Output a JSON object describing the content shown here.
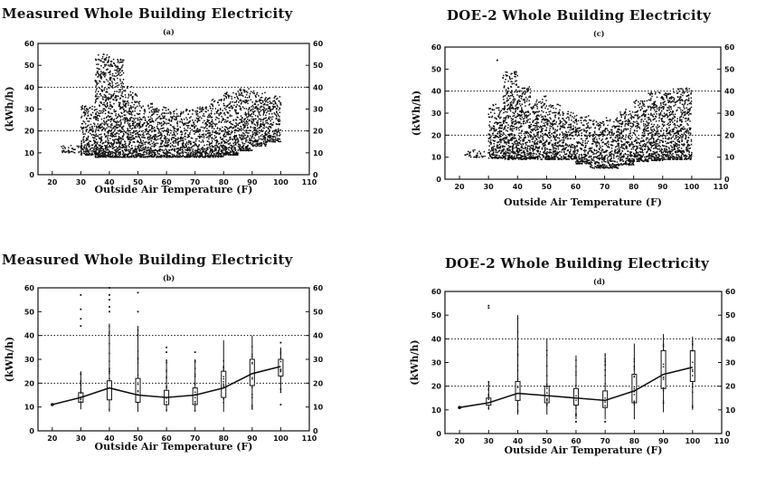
{
  "chart_data": [
    {
      "id": "a",
      "type": "scatter",
      "title": "Measured Whole Building Electricity",
      "subtitle": "(a)",
      "xlabel": "Outside Air Temperature (F)",
      "ylabel": "(kWh/h)",
      "xlim": [
        15,
        110
      ],
      "ylim": [
        0,
        60
      ],
      "xticks": [
        20,
        30,
        40,
        50,
        60,
        70,
        80,
        90,
        100,
        110
      ],
      "yticks": [
        0,
        10,
        20,
        30,
        40,
        50,
        60
      ],
      "reference_lines_y": [
        20,
        40
      ],
      "points_sample": [
        [
          24,
          11
        ],
        [
          27,
          12
        ],
        [
          30,
          13
        ],
        [
          32,
          12
        ],
        [
          35,
          15
        ],
        [
          37,
          45
        ],
        [
          38,
          55
        ],
        [
          40,
          35
        ],
        [
          42,
          50
        ],
        [
          44,
          20
        ],
        [
          45,
          30
        ],
        [
          47,
          14
        ],
        [
          50,
          25
        ],
        [
          52,
          18
        ],
        [
          55,
          22
        ],
        [
          58,
          13
        ],
        [
          60,
          20
        ],
        [
          62,
          26
        ],
        [
          65,
          17
        ],
        [
          68,
          24
        ],
        [
          70,
          14
        ],
        [
          72,
          30
        ],
        [
          75,
          22
        ],
        [
          78,
          33
        ],
        [
          80,
          18
        ],
        [
          82,
          36
        ],
        [
          85,
          28
        ],
        [
          88,
          38
        ],
        [
          90,
          24
        ],
        [
          93,
          34
        ],
        [
          95,
          30
        ],
        [
          98,
          31
        ],
        [
          100,
          32
        ]
      ],
      "density_description_envelope": {
        "x": [
          23,
          30,
          35,
          40,
          45,
          50,
          55,
          60,
          65,
          70,
          75,
          80,
          85,
          90,
          95,
          100
        ],
        "y_low": [
          10,
          10,
          8,
          8,
          8,
          8,
          8,
          8,
          8,
          8,
          8,
          8,
          10,
          12,
          14,
          16
        ],
        "y_high": [
          13,
          14,
          50,
          60,
          46,
          35,
          32,
          30,
          30,
          30,
          32,
          37,
          39,
          40,
          37,
          35
        ]
      }
    },
    {
      "id": "c",
      "type": "scatter",
      "title": "DOE-2 Whole Building Electricity",
      "subtitle": "(c)",
      "xlabel": "Outside Air Temperature (F)",
      "ylabel": "(kWh/h)",
      "xlim": [
        15,
        110
      ],
      "ylim": [
        0,
        60
      ],
      "xticks": [
        20,
        30,
        40,
        50,
        60,
        70,
        80,
        90,
        100,
        110
      ],
      "yticks": [
        0,
        10,
        20,
        30,
        40,
        50,
        60
      ],
      "reference_lines_y": [
        20,
        40
      ],
      "points_sample": [
        [
          22,
          11
        ],
        [
          26,
          10
        ],
        [
          30,
          12
        ],
        [
          33,
          54
        ],
        [
          35,
          46
        ],
        [
          38,
          40
        ],
        [
          40,
          35
        ],
        [
          45,
          32
        ],
        [
          50,
          27
        ],
        [
          55,
          24
        ],
        [
          60,
          22
        ],
        [
          65,
          21
        ],
        [
          68,
          20
        ],
        [
          70,
          22
        ],
        [
          75,
          24
        ],
        [
          80,
          28
        ],
        [
          85,
          33
        ],
        [
          90,
          37
        ],
        [
          95,
          39
        ],
        [
          98,
          41
        ],
        [
          40,
          14
        ],
        [
          50,
          10
        ],
        [
          60,
          11
        ],
        [
          70,
          10
        ],
        [
          80,
          9
        ],
        [
          90,
          9
        ],
        [
          95,
          9
        ]
      ],
      "density_description_envelope": {
        "x": [
          22,
          30,
          35,
          40,
          45,
          50,
          55,
          60,
          65,
          70,
          75,
          80,
          85,
          90,
          95,
          100
        ],
        "y_low": [
          10,
          10,
          9,
          9,
          9,
          9,
          9,
          9,
          5,
          5,
          5,
          8,
          8,
          9,
          9,
          9
        ],
        "y_high": [
          13,
          14,
          54,
          44,
          40,
          36,
          32,
          30,
          28,
          26,
          30,
          34,
          38,
          41,
          42,
          41
        ]
      }
    },
    {
      "id": "b",
      "type": "box",
      "title": "Measured Whole Building Electricity",
      "subtitle": "(b)",
      "xlabel": "Outside Air Temperature (F)",
      "ylabel": "(kWh/h)",
      "xlim": [
        15,
        110
      ],
      "ylim": [
        0,
        60
      ],
      "xticks": [
        20,
        30,
        40,
        50,
        60,
        70,
        80,
        90,
        100,
        110
      ],
      "yticks": [
        0,
        10,
        20,
        30,
        40,
        50,
        60
      ],
      "reference_lines_y": [
        20,
        40
      ],
      "categories": [
        20,
        30,
        40,
        50,
        60,
        70,
        80,
        90,
        100
      ],
      "median_line": [
        11,
        14,
        18,
        15,
        14,
        15,
        18,
        24,
        27
      ],
      "boxes": [
        {
          "x": 30,
          "q1": 12,
          "q3": 16,
          "lo": 9,
          "hi": 25,
          "outliers": [
            44,
            47,
            51,
            57
          ]
        },
        {
          "x": 40,
          "q1": 13,
          "q3": 21,
          "lo": 8,
          "hi": 45,
          "outliers": [
            50,
            52,
            55,
            57,
            60
          ]
        },
        {
          "x": 50,
          "q1": 12,
          "q3": 22,
          "lo": 8,
          "hi": 44,
          "outliers": [
            50,
            58
          ]
        },
        {
          "x": 60,
          "q1": 11,
          "q3": 17,
          "lo": 8,
          "hi": 30,
          "outliers": [
            33,
            35
          ]
        },
        {
          "x": 70,
          "q1": 11,
          "q3": 18,
          "lo": 8,
          "hi": 30,
          "outliers": [
            33
          ]
        },
        {
          "x": 80,
          "q1": 14,
          "q3": 25,
          "lo": 8,
          "hi": 38,
          "outliers": []
        },
        {
          "x": 90,
          "q1": 19,
          "q3": 30,
          "lo": 9,
          "hi": 40,
          "outliers": []
        },
        {
          "x": 100,
          "q1": 23,
          "q3": 30,
          "lo": 16,
          "hi": 35,
          "outliers": [
            11,
            37
          ]
        }
      ]
    },
    {
      "id": "d",
      "type": "box",
      "title": "DOE-2 Whole Building Electricity",
      "subtitle": "(d)",
      "xlabel": "Outside Air Temperature (F)",
      "ylabel": "(kWh/h)",
      "xlim": [
        15,
        110
      ],
      "ylim": [
        0,
        60
      ],
      "xticks": [
        20,
        30,
        40,
        50,
        60,
        70,
        80,
        90,
        100,
        110
      ],
      "yticks": [
        0,
        10,
        20,
        30,
        40,
        50,
        60
      ],
      "reference_lines_y": [
        20,
        40
      ],
      "categories": [
        20,
        30,
        40,
        50,
        60,
        70,
        80,
        90,
        100
      ],
      "median_line": [
        11,
        13,
        17,
        16,
        15,
        14,
        18,
        25,
        28
      ],
      "boxes": [
        {
          "x": 30,
          "q1": 12,
          "q3": 15,
          "lo": 10,
          "hi": 22,
          "outliers": [
            53,
            54
          ]
        },
        {
          "x": 40,
          "q1": 14,
          "q3": 22,
          "lo": 8,
          "hi": 50,
          "outliers": []
        },
        {
          "x": 50,
          "q1": 13,
          "q3": 20,
          "lo": 8,
          "hi": 40,
          "outliers": []
        },
        {
          "x": 60,
          "q1": 12,
          "q3": 19,
          "lo": 6,
          "hi": 33,
          "outliers": [
            5
          ]
        },
        {
          "x": 70,
          "q1": 11,
          "q3": 18,
          "lo": 6,
          "hi": 34,
          "outliers": [
            5
          ]
        },
        {
          "x": 80,
          "q1": 13,
          "q3": 25,
          "lo": 6,
          "hi": 38,
          "outliers": []
        },
        {
          "x": 90,
          "q1": 19,
          "q3": 35,
          "lo": 9,
          "hi": 42,
          "outliers": []
        },
        {
          "x": 100,
          "q1": 22,
          "q3": 35,
          "lo": 10,
          "hi": 41,
          "outliers": []
        }
      ]
    }
  ]
}
